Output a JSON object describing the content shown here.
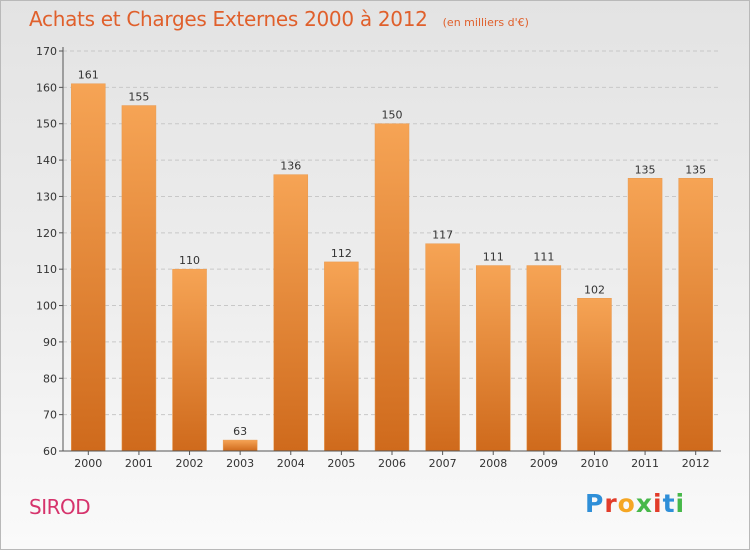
{
  "header": {
    "title": "Achats et Charges Externes 2000 à 2012",
    "unit": "(en milliers d'€)"
  },
  "footer": {
    "commune": "SIROD",
    "brand": "Proxiti",
    "brand_colors": [
      "#2f8fd8",
      "#e23c2a",
      "#f5a623",
      "#47b84a",
      "#e23c2a",
      "#2f8fd8",
      "#47b84a"
    ]
  },
  "colors": {
    "bar_top": "#f6a455",
    "bar_bottom": "#cf6a1c",
    "axis": "#555555",
    "grid": "#c8c8c8",
    "label": "#333333"
  },
  "chart_data": {
    "type": "bar",
    "categories": [
      "2000",
      "2001",
      "2002",
      "2003",
      "2004",
      "2005",
      "2006",
      "2007",
      "2008",
      "2009",
      "2010",
      "2011",
      "2012"
    ],
    "values": [
      161,
      155,
      110,
      63,
      136,
      112,
      150,
      117,
      111,
      111,
      102,
      135,
      135
    ],
    "data_labels": [
      "161",
      "155",
      "110",
      "63",
      "136",
      "112",
      "150",
      "117",
      "111",
      "111",
      "102",
      "135",
      "135"
    ],
    "ylim": [
      60,
      170
    ],
    "yticks": [
      60,
      70,
      80,
      90,
      100,
      110,
      120,
      130,
      140,
      150,
      160,
      170
    ],
    "grid": true,
    "xlabel": "",
    "ylabel": ""
  }
}
